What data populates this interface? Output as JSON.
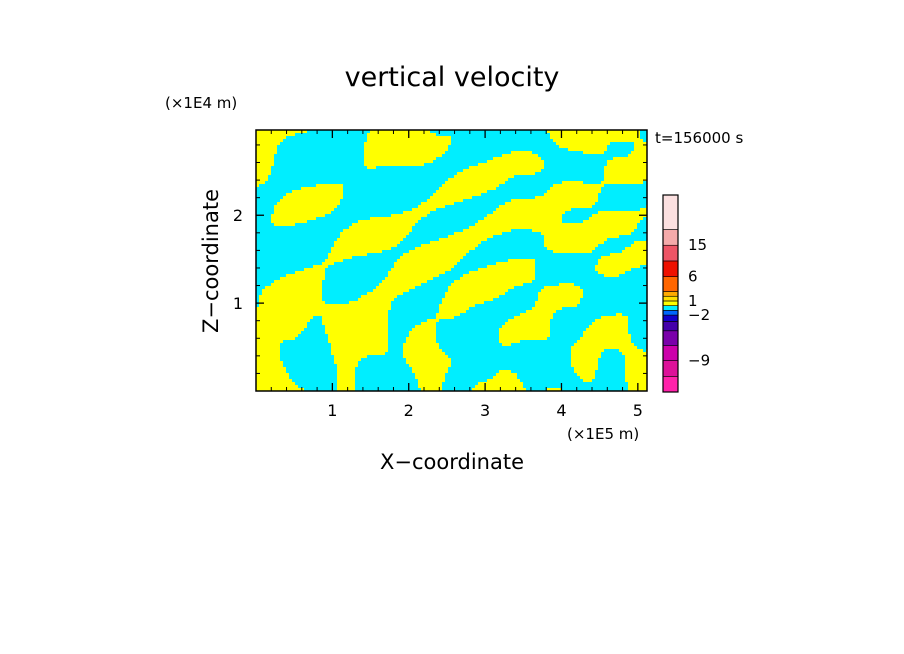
{
  "chart_data": {
    "type": "heatmap",
    "title": "vertical velocity",
    "xlabel": "X−coordinate",
    "ylabel": "Z−coordinate",
    "x_unit": "(×1E5 m)",
    "y_unit": "(×1E4 m)",
    "time_label": "t=156000 s",
    "xlim": [
      0,
      5.12
    ],
    "ylim": [
      0,
      2.97
    ],
    "x_ticks": [
      1,
      2,
      3,
      4,
      5
    ],
    "y_ticks": [
      1,
      2
    ],
    "x_tick_labels": [
      "1",
      "2",
      "3",
      "4",
      "5"
    ],
    "y_tick_labels": [
      "1",
      "2"
    ],
    "colors": {
      "positive_weak": "#ffff00",
      "negative_weak": "#00eeff"
    },
    "colorbar": {
      "tick_labels": [
        "15",
        "6",
        "1",
        "−2",
        "−9"
      ],
      "tick_values": [
        15,
        6,
        1,
        -2,
        -9
      ],
      "levels": [
        {
          "color": "#ff22aa"
        },
        {
          "color": "#dd1199"
        },
        {
          "color": "#cc00aa"
        },
        {
          "color": "#7a00aa"
        },
        {
          "color": "#4400aa"
        },
        {
          "color": "#1100cc"
        },
        {
          "color": "#0066ff"
        },
        {
          "color": "#00eeff"
        },
        {
          "color": "#ffff00"
        },
        {
          "color": "#ffdd00"
        },
        {
          "color": "#ffaa00"
        },
        {
          "color": "#ff6600"
        },
        {
          "color": "#ee1100"
        },
        {
          "color": "#ee5566"
        },
        {
          "color": "#f5aaaa"
        },
        {
          "color": "#fbe0e0"
        }
      ]
    }
  }
}
